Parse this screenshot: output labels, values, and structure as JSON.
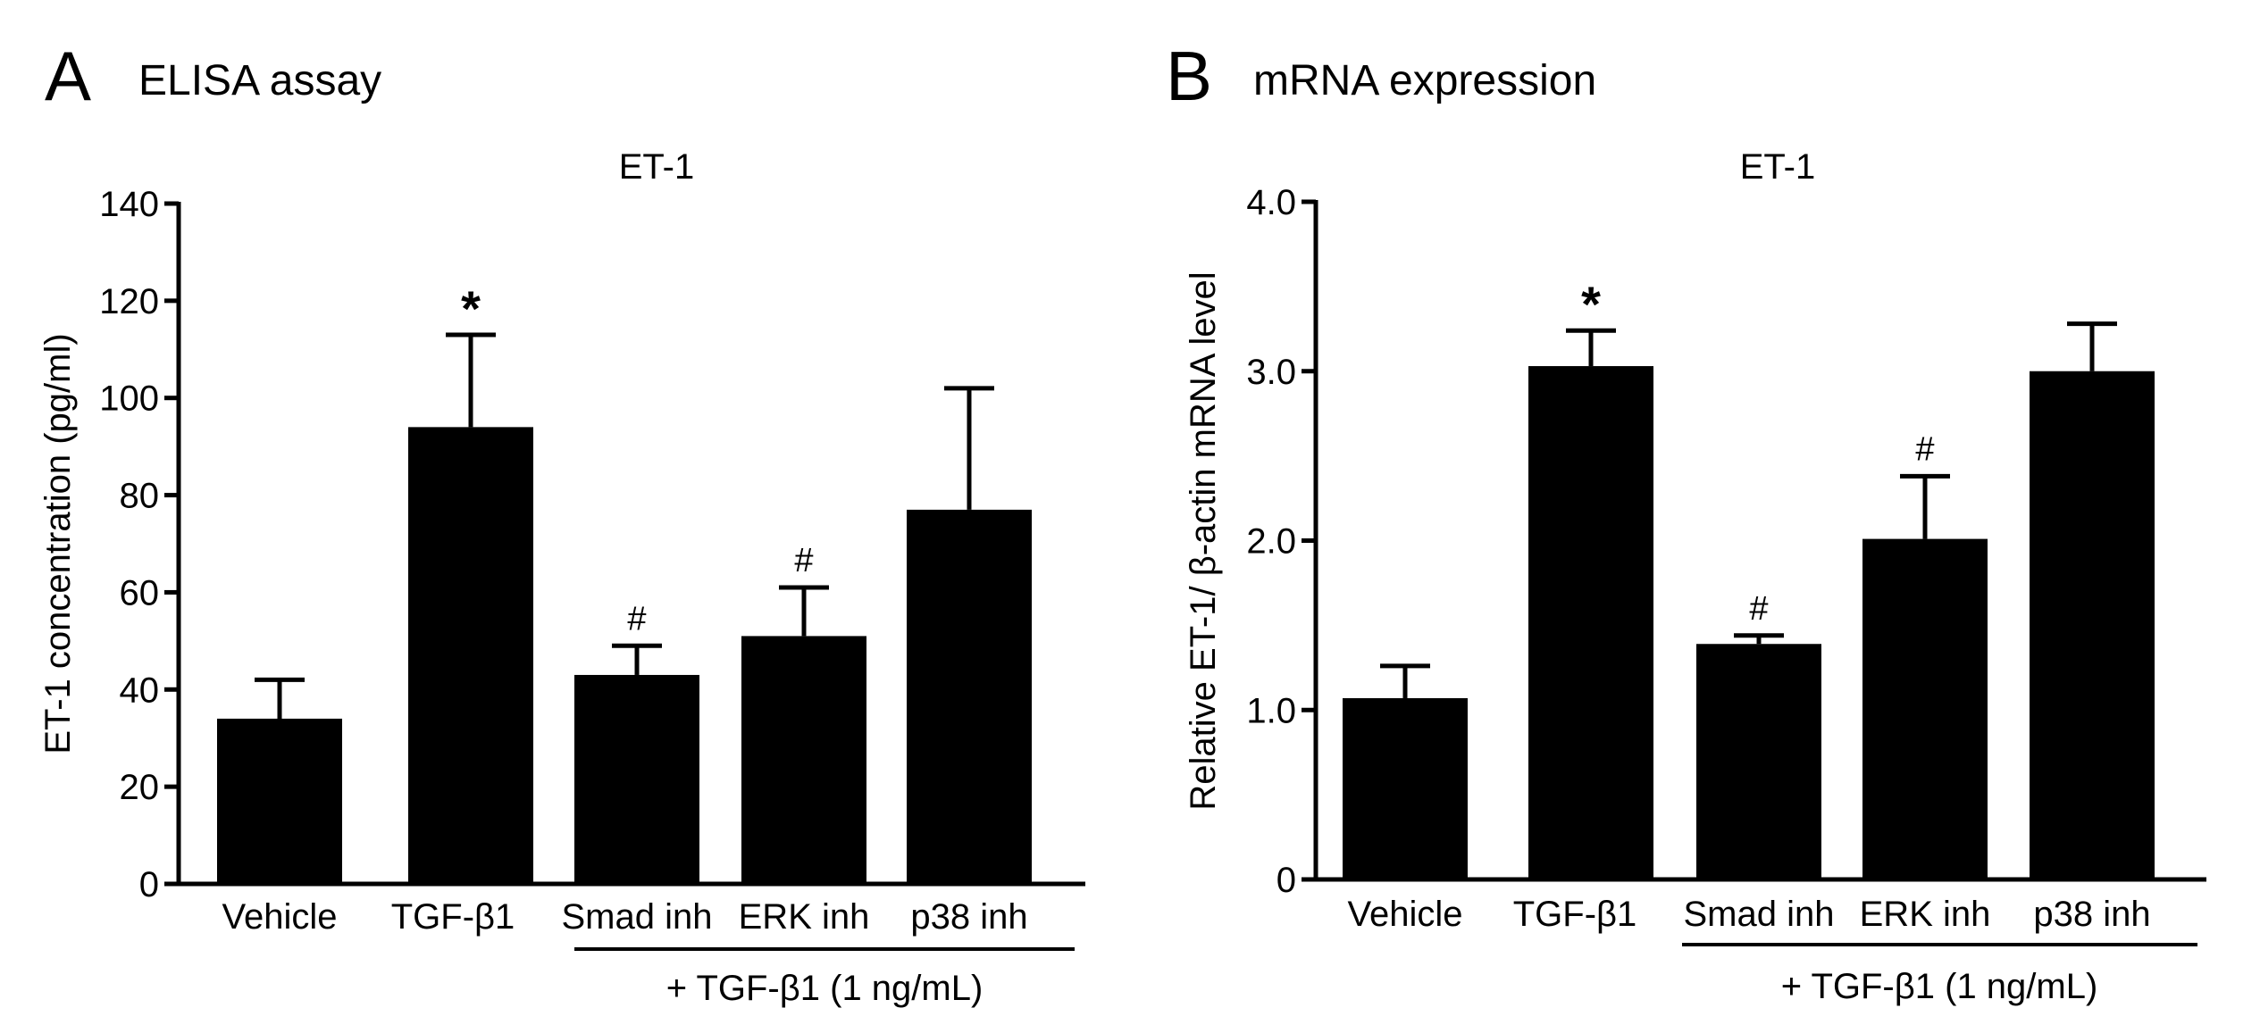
{
  "panels": {
    "a": {
      "letter": "A",
      "heading": "ELISA assay"
    },
    "b": {
      "letter": "B",
      "heading": "mRNA expression"
    }
  },
  "chart_data": [
    {
      "type": "bar",
      "title": "ET-1",
      "xlabel": "",
      "ylabel": "ET-1 concentration (pg/ml)",
      "ylim": [
        0,
        140
      ],
      "yticks": [
        "0",
        "20",
        "40",
        "60",
        "80",
        "100",
        "120",
        "140"
      ],
      "categories": [
        "Vehicle",
        "TGF-β1",
        "Smad inh",
        "ERK inh",
        "p38 inh"
      ],
      "values": [
        34,
        94,
        43,
        51,
        77
      ],
      "errors": [
        8,
        19,
        6,
        10,
        25
      ],
      "annotations": [
        "",
        "*",
        "#",
        "#",
        ""
      ],
      "group_label": "+ TGF-β1 (1 ng/mL)",
      "group_span": [
        2,
        4
      ],
      "bar_color": "#000000",
      "grid": false
    },
    {
      "type": "bar",
      "title": "ET-1",
      "xlabel": "",
      "ylabel": "Relative ET-1/ β-actin mRNA level",
      "ylim": [
        0,
        4.0
      ],
      "yticks": [
        "0",
        "1.0",
        "2.0",
        "3.0",
        "4.0"
      ],
      "categories": [
        "Vehicle",
        "TGF-β1",
        "Smad inh",
        "ERK inh",
        "p38 inh"
      ],
      "values": [
        1.07,
        3.03,
        1.39,
        2.01,
        3.0
      ],
      "errors": [
        0.19,
        0.21,
        0.05,
        0.37,
        0.28
      ],
      "annotations": [
        "",
        "*",
        "#",
        "#",
        ""
      ],
      "group_label": "+ TGF-β1 (1 ng/mL)",
      "group_span": [
        2,
        4
      ],
      "bar_color": "#000000",
      "grid": false
    }
  ]
}
